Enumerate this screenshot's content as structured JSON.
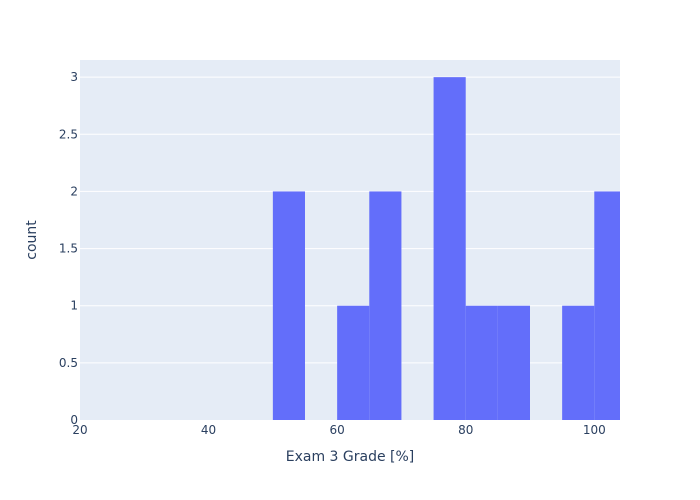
{
  "chart_data": {
    "type": "bar",
    "title": "",
    "xlabel": "Exam 3 Grade [%]",
    "ylabel": "count",
    "xlim": [
      20,
      104
    ],
    "ylim": [
      0,
      3.15
    ],
    "x_ticks": [
      20,
      40,
      60,
      80,
      100
    ],
    "y_ticks": [
      0,
      0.5,
      1,
      1.5,
      2,
      2.5,
      3
    ],
    "y_tick_labels": [
      "0",
      "0.5",
      "1",
      "1.5",
      "2",
      "2.5",
      "3"
    ],
    "bin_width": 5,
    "bins": [
      {
        "x0": 50,
        "x1": 55,
        "count": 2
      },
      {
        "x0": 60,
        "x1": 65,
        "count": 1
      },
      {
        "x0": 65,
        "x1": 70,
        "count": 2
      },
      {
        "x0": 75,
        "x1": 80,
        "count": 3
      },
      {
        "x0": 80,
        "x1": 85,
        "count": 1
      },
      {
        "x0": 85,
        "x1": 90,
        "count": 1
      },
      {
        "x0": 95,
        "x1": 100,
        "count": 1
      },
      {
        "x0": 100,
        "x1": 105,
        "count": 2
      }
    ],
    "grid": true,
    "colors": {
      "bar": "#636efa",
      "plot_background": "#e5ecf6",
      "grid": "#ffffff",
      "text": "#2a3f5f"
    }
  }
}
